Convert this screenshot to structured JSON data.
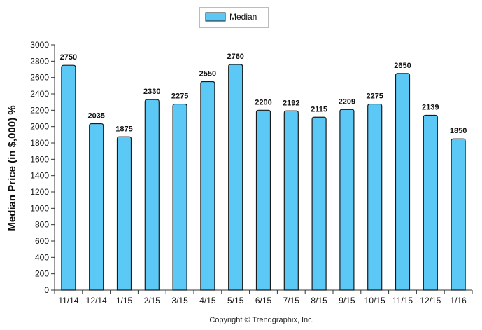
{
  "chart_data": {
    "type": "bar",
    "categories": [
      "11/14",
      "12/14",
      "1/15",
      "2/15",
      "3/15",
      "4/15",
      "5/15",
      "6/15",
      "7/15",
      "8/15",
      "9/15",
      "10/15",
      "11/15",
      "12/15",
      "1/16"
    ],
    "series": [
      {
        "name": "Median",
        "values": [
          2750,
          2035,
          1875,
          2330,
          2275,
          2550,
          2760,
          2200,
          2192,
          2115,
          2209,
          2275,
          2650,
          2139,
          1850
        ]
      }
    ],
    "data_labels": [
      "2750",
      "2035",
      "1875",
      "2330",
      "2275",
      "2550",
      "2760",
      "2200",
      "2192",
      "2115",
      "2209",
      "2275",
      "2650",
      "2139",
      "1850"
    ],
    "ylabel": "Median Price (in $,000) %",
    "ylim": [
      0,
      3000
    ],
    "ytick_step": 200,
    "grid": false,
    "legend": "top-center",
    "footer": "Copyright © Trendgraphix, Inc.",
    "colors": {
      "bar_fill": "#5bc8f5",
      "bar_stroke": "#1a1a1a",
      "axis": "#333333"
    }
  }
}
